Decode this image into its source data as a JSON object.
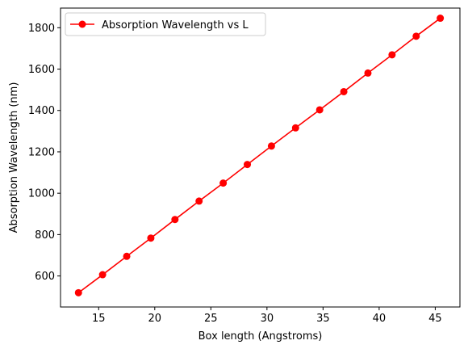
{
  "chart_data": {
    "type": "line",
    "xlabel": "Box length (Angstroms)",
    "ylabel": "Absorption Wavelength (nm)",
    "xlim": [
      11.6,
      47.2
    ],
    "ylim": [
      450,
      1895
    ],
    "x_ticks": [
      15,
      20,
      25,
      30,
      35,
      40,
      45
    ],
    "y_ticks": [
      600,
      800,
      1000,
      1200,
      1400,
      1600,
      1800
    ],
    "grid": false,
    "legend_position": "upper left",
    "series": [
      {
        "name": "Absorption Wavelength vs L",
        "color": "#ff0000",
        "marker": "circle",
        "x": [
          13.2,
          15.35,
          17.5,
          19.65,
          21.8,
          23.95,
          26.1,
          28.25,
          30.4,
          32.55,
          34.7,
          36.85,
          39.0,
          41.15,
          43.3,
          45.45
        ],
        "y": [
          519,
          606,
          695,
          783,
          873,
          962,
          1049,
          1139,
          1228,
          1316,
          1403,
          1491,
          1581,
          1669,
          1759,
          1846
        ]
      }
    ]
  }
}
